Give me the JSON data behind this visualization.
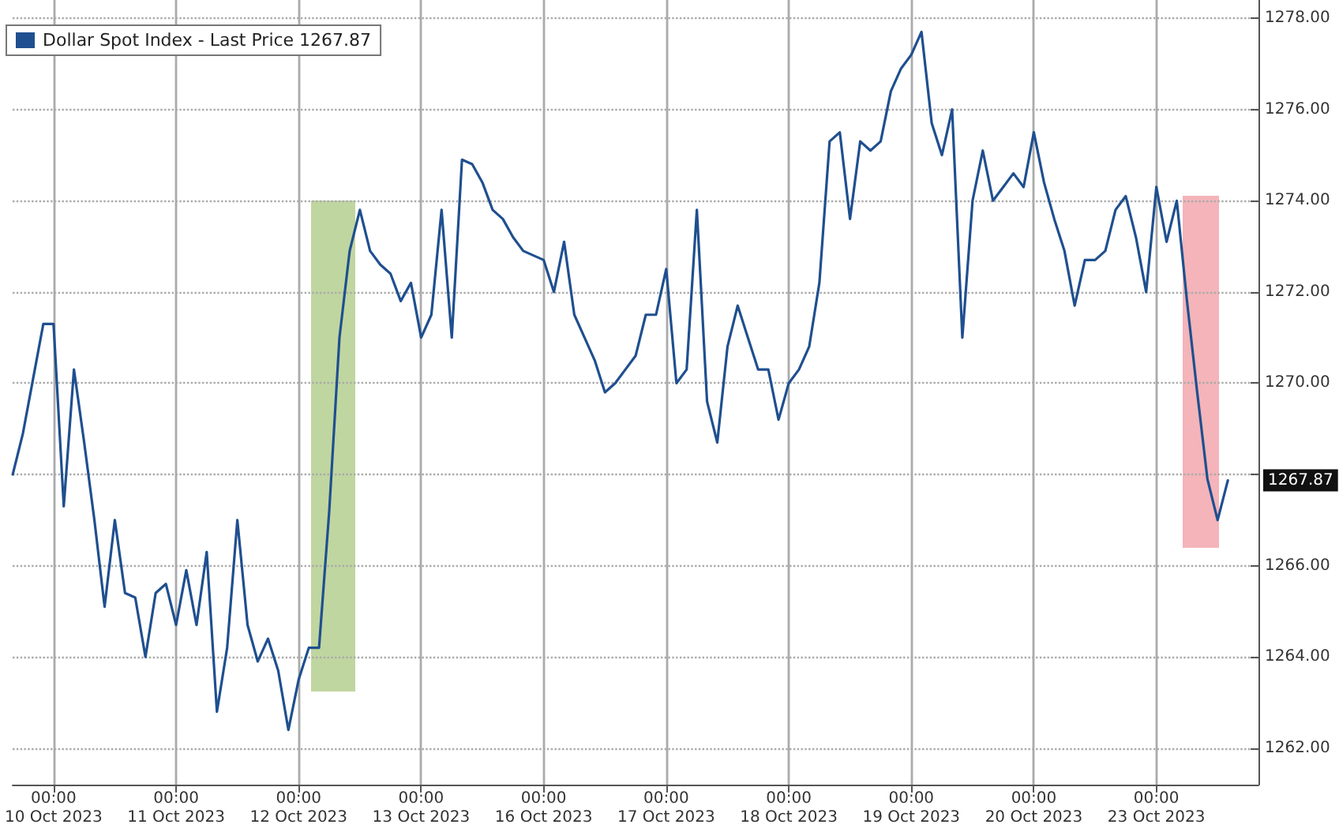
{
  "chart_data": {
    "type": "line",
    "legend": "top left",
    "grid": true,
    "marker": "none",
    "line_style": "solid",
    "categories": [
      null,
      null,
      null,
      null,
      "00:00\n10 Oct 2023",
      null,
      null,
      null,
      null,
      null,
      null,
      null,
      null,
      null,
      null,
      null,
      "00:00\n11 Oct 2023",
      null,
      null,
      null,
      null,
      null,
      null,
      null,
      null,
      null,
      null,
      null,
      "00:00\n12 Oct 2023",
      null,
      null,
      null,
      null,
      null,
      null,
      null,
      null,
      null,
      null,
      null,
      "00:00\n13 Oct 2023",
      null,
      null,
      null,
      null,
      null,
      null,
      null,
      null,
      null,
      null,
      null,
      "00:00\n16 Oct 2023",
      null,
      null,
      null,
      null,
      null,
      null,
      null,
      null,
      null,
      null,
      null,
      "00:00\n17 Oct 2023",
      null,
      null,
      null,
      null,
      null,
      null,
      null,
      null,
      null,
      null,
      null,
      "00:00\n18 Oct 2023",
      null,
      null,
      null,
      null,
      null,
      null,
      null,
      null,
      null,
      null,
      null,
      "00:00\n19 Oct 2023",
      null,
      null,
      null,
      null,
      null,
      null,
      null,
      null,
      null,
      null,
      null,
      "00:00\n20 Oct 2023",
      null,
      null,
      null,
      null,
      null,
      null,
      null,
      null,
      null,
      null,
      null,
      "00:00\n23 Oct 2023",
      null,
      null,
      null,
      null,
      null,
      null,
      null,
      null,
      null,
      null
    ],
    "ylim": [
      1261.2,
      1278.4
    ],
    "yticks": [
      {
        "value": 1262,
        "label": "1262.00"
      },
      {
        "value": 1264,
        "label": "1264.00"
      },
      {
        "value": 1266,
        "label": "1266.00"
      },
      {
        "value": 1268,
        "label": null
      },
      {
        "value": 1270,
        "label": "1270.00"
      },
      {
        "value": 1272,
        "label": "1272.00"
      },
      {
        "value": 1274,
        "label": "1274.00"
      },
      {
        "value": 1276,
        "label": "1276.00"
      },
      {
        "value": 1278,
        "label": "1278.00"
      }
    ],
    "annotations": [
      "1267.87"
    ],
    "series": [
      {
        "name": "Dollar Spot Index - Last Price 1267.87",
        "color": "#1f4f8f",
        "values": [
          1268.0,
          1268.9,
          1270.1,
          1271.3,
          1271.3,
          1267.3,
          1270.3,
          1268.7,
          1267.0,
          1265.1,
          1267.0,
          1265.4,
          1265.3,
          1264.0,
          1265.4,
          1265.6,
          1264.7,
          1265.9,
          1264.7,
          1266.3,
          1262.8,
          1264.2,
          1267.0,
          1264.7,
          1263.9,
          1264.4,
          1263.7,
          1262.4,
          1263.5,
          1264.2,
          1264.2,
          1267.2,
          1271.0,
          1272.9,
          1273.8,
          1272.9,
          1272.6,
          1272.4,
          1271.8,
          1272.2,
          1271.0,
          1271.5,
          1273.8,
          1271.0,
          1274.9,
          1274.8,
          1274.4,
          1273.8,
          1273.6,
          1273.2,
          1272.9,
          1272.8,
          1272.7,
          1272.0,
          1273.1,
          1271.5,
          1271.0,
          1270.5,
          1269.8,
          1270.0,
          1270.3,
          1270.6,
          1271.5,
          1271.5,
          1272.5,
          1270.0,
          1270.3,
          1273.8,
          1269.6,
          1268.7,
          1270.8,
          1271.7,
          1271.0,
          1270.3,
          1270.3,
          1269.2,
          1270.0,
          1270.3,
          1270.8,
          1272.2,
          1275.3,
          1275.5,
          1273.6,
          1275.3,
          1275.1,
          1275.3,
          1276.4,
          1276.9,
          1277.2,
          1277.7,
          1275.7,
          1275.0,
          1276.0,
          1271.0,
          1274.0,
          1275.1,
          1274.0,
          1274.3,
          1274.6,
          1274.3,
          1275.5,
          1274.4,
          1273.6,
          1272.9,
          1271.7,
          1272.7,
          1272.7,
          1272.9,
          1273.8,
          1274.1,
          1273.2,
          1272.0,
          1274.3,
          1273.1,
          1274.0,
          1271.8,
          1269.8,
          1267.9,
          1267.0,
          1267.87,
          null,
          null,
          null
        ]
      }
    ]
  }
}
